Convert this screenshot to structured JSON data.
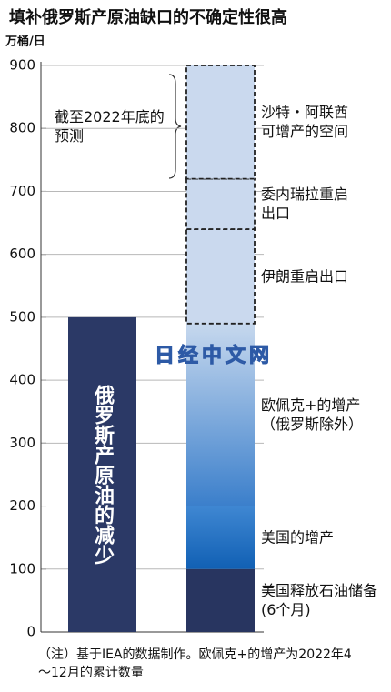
{
  "chart_data": {
    "type": "bar",
    "stacked": true,
    "title": "填补俄罗斯产原油缺口的不确定性很高",
    "y_label": "万桶/日",
    "annotation": "截至2022年底的预测",
    "note": "（注）基于IEA的数据制作。欧佩克+的增产为2022年4～12月的累计数量",
    "watermark": "日经中文网",
    "categories": [
      null,
      null
    ],
    "ylim": [
      0,
      900
    ],
    "yticks": [
      0,
      100,
      200,
      300,
      400,
      500,
      600,
      700,
      800,
      900
    ],
    "grid": true,
    "series": [
      {
        "name": "俄罗斯产原油的减少",
        "color": "#2b3966",
        "values": [
          500,
          null
        ]
      },
      {
        "name": "美国释放石油储备(6个月)",
        "color": "#283560",
        "values": [
          null,
          100
        ]
      },
      {
        "name": "美国的增产",
        "color": "#1f6cbf",
        "values": [
          null,
          100
        ]
      },
      {
        "name": "欧佩克+的增产（俄罗斯除外）",
        "color": "#6c9fd8",
        "values": [
          null,
          290
        ]
      },
      {
        "name": "伊朗重启出口",
        "color": "#cad9ee",
        "dashed": true,
        "values": [
          null,
          150
        ]
      },
      {
        "name": "委内瑞拉重启出口",
        "color": "#cad9ee",
        "dashed": true,
        "values": [
          null,
          80
        ]
      },
      {
        "name": "沙特・阿联酋可增产的空间",
        "color": "#cad9ee",
        "dashed": true,
        "values": [
          null,
          180
        ]
      }
    ]
  }
}
